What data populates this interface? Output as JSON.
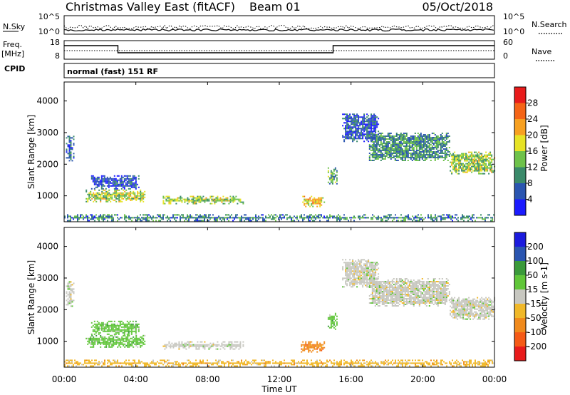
{
  "header": {
    "station": "Christmas Valley East (fitACF)",
    "beam": "Beam 01",
    "date": "05/Oct/2018"
  },
  "panels": {
    "nsky": {
      "label": "N.Sky",
      "right_label": "N.Search",
      "left_ticks": [
        "10^5",
        "10^0"
      ],
      "right_ticks": [
        "10^5",
        "10^0"
      ]
    },
    "freq": {
      "label_line1": "Freq.",
      "label_line2": "[MHz]",
      "right_label": "Nave",
      "left_ticks": [
        "18",
        "8"
      ],
      "right_ticks": [
        "60",
        "0"
      ]
    },
    "cpid": {
      "label": "CPID",
      "text": "normal (fast) 151 RF"
    }
  },
  "time_axis": {
    "label": "Time UT",
    "ticks": [
      "00:00",
      "04:00",
      "08:00",
      "12:00",
      "16:00",
      "20:00",
      "00:00"
    ]
  },
  "colors": {
    "power": [
      "#1b1bff",
      "#2a55b0",
      "#3a8a6a",
      "#6ec24a",
      "#e7e325",
      "#f7a020",
      "#f56416",
      "#e81b1b"
    ],
    "velocity": [
      "#e81b1b",
      "#f55a16",
      "#f08a1c",
      "#f0b829",
      "#c7c7c0",
      "#60c639",
      "#3a9a3a",
      "#2a55b0",
      "#1b1bdd"
    ]
  },
  "chart_data": [
    {
      "type": "heatmap",
      "name": "power",
      "ylabel": "Slant Range [km]",
      "xlabel": "Time UT",
      "xlim_hours": [
        0,
        24
      ],
      "ylim": [
        180,
        4600
      ],
      "yticks": [
        "1000",
        "2000",
        "3000",
        "4000"
      ],
      "colorbar": {
        "label": "Power [dB]",
        "ticks": [
          "4",
          "8",
          "12",
          "16",
          "20",
          "24",
          "28"
        ],
        "range": [
          0,
          32
        ]
      },
      "regions": [
        {
          "t": [
            0.1,
            0.5
          ],
          "r": [
            2100,
            2900
          ],
          "level": 9
        },
        {
          "t": [
            1.2,
            4.5
          ],
          "r": [
            800,
            1200
          ],
          "level": 18
        },
        {
          "t": [
            1.5,
            4.2
          ],
          "r": [
            1200,
            1650
          ],
          "level": 7
        },
        {
          "t": [
            5.5,
            10.0
          ],
          "r": [
            750,
            1000
          ],
          "level": 17
        },
        {
          "t": [
            13.2,
            14.5
          ],
          "r": [
            650,
            1000
          ],
          "level": 22
        },
        {
          "t": [
            14.7,
            15.2
          ],
          "r": [
            1400,
            1900
          ],
          "level": 13
        },
        {
          "t": [
            15.5,
            17.5
          ],
          "r": [
            2700,
            3600
          ],
          "level": 7
        },
        {
          "t": [
            17.0,
            21.5
          ],
          "r": [
            2100,
            3000
          ],
          "level": 12
        },
        {
          "t": [
            21.5,
            24.0
          ],
          "r": [
            1700,
            2400
          ],
          "level": 17
        },
        {
          "t": [
            0.0,
            24.0
          ],
          "r": [
            200,
            420
          ],
          "level": 11
        }
      ]
    },
    {
      "type": "heatmap",
      "name": "velocity",
      "ylabel": "Slant Range [km]",
      "xlabel": "Time UT",
      "xlim_hours": [
        0,
        24
      ],
      "ylim": [
        180,
        4600
      ],
      "yticks": [
        "1000",
        "2000",
        "3000",
        "4000"
      ],
      "colorbar": {
        "label": "Velocity [m s-1]",
        "ticks": [
          "200",
          "100",
          "50",
          "15",
          "-15",
          "-50",
          "-100",
          "-200"
        ]
      },
      "regions": [
        {
          "t": [
            0.1,
            0.5
          ],
          "r": [
            2100,
            2900
          ],
          "level": 4
        },
        {
          "t": [
            1.2,
            4.5
          ],
          "r": [
            800,
            1200
          ],
          "level": 5
        },
        {
          "t": [
            1.5,
            4.2
          ],
          "r": [
            1200,
            1650
          ],
          "level": 5
        },
        {
          "t": [
            5.5,
            10.0
          ],
          "r": [
            750,
            1000
          ],
          "level": 4
        },
        {
          "t": [
            13.2,
            14.5
          ],
          "r": [
            650,
            1000
          ],
          "level": 2
        },
        {
          "t": [
            14.7,
            15.2
          ],
          "r": [
            1400,
            1900
          ],
          "level": 5
        },
        {
          "t": [
            15.5,
            17.5
          ],
          "r": [
            2700,
            3600
          ],
          "level": 4
        },
        {
          "t": [
            17.0,
            21.5
          ],
          "r": [
            2100,
            3000
          ],
          "level": 4
        },
        {
          "t": [
            21.5,
            24.0
          ],
          "r": [
            1700,
            2400
          ],
          "level": 4
        },
        {
          "t": [
            0.0,
            24.0
          ],
          "r": [
            200,
            420
          ],
          "level": 3
        }
      ]
    }
  ]
}
